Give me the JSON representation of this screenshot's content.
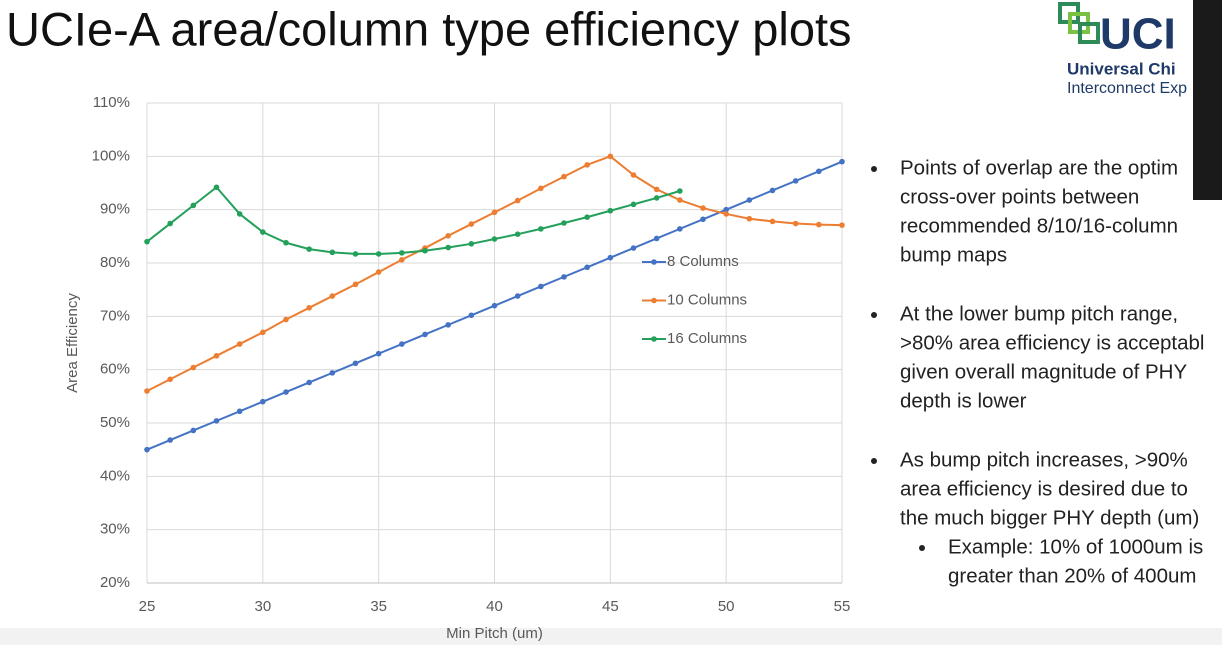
{
  "slide": {
    "title": "UCIe-A area/column type efficiency plots",
    "logo": {
      "mark": "UCI",
      "line1": "Universal Chi",
      "line2": "Interconnect Exp"
    },
    "bullets": [
      {
        "lines": [
          "Points of overlap are the optim",
          "cross-over points between",
          "recommended 8/10/16-column",
          "bump maps"
        ]
      },
      {
        "lines": [
          "At the lower bump pitch range,",
          ">80% area efficiency is acceptabl",
          "given overall magnitude of PHY",
          "depth is lower"
        ]
      },
      {
        "lines": [
          "As bump pitch increases, >90%",
          "area efficiency is desired due to",
          "the much bigger PHY depth (um)"
        ],
        "sub": [
          {
            "lines": [
              "Example: 10% of 1000um is",
              "greater than 20% of 400um"
            ]
          }
        ]
      }
    ]
  },
  "chart_data": {
    "type": "line",
    "x_label": "Min Pitch (um)",
    "y_label": "Area Efficiency",
    "x": [
      25,
      26,
      27,
      28,
      29,
      30,
      31,
      32,
      33,
      34,
      35,
      36,
      37,
      38,
      39,
      40,
      41,
      42,
      43,
      44,
      45,
      46,
      47,
      48,
      49,
      50,
      51,
      52,
      53,
      54,
      55
    ],
    "series": [
      {
        "name": "8 Columns",
        "color": "#4472c4",
        "values": [
          45,
          46.8,
          48.6,
          50.4,
          52.2,
          54,
          55.8,
          57.6,
          59.4,
          61.2,
          63,
          64.8,
          66.6,
          68.4,
          70.2,
          72,
          73.8,
          75.6,
          77.4,
          79.2,
          81,
          82.8,
          84.6,
          86.4,
          88.2,
          90,
          91.8,
          93.6,
          95.4,
          97.2,
          99
        ]
      },
      {
        "name": "10 Columns",
        "color": "#ed7d31",
        "values": [
          56,
          58.2,
          60.4,
          62.6,
          64.8,
          67,
          69.4,
          71.6,
          73.8,
          76,
          78.3,
          80.6,
          82.8,
          85.1,
          87.3,
          89.5,
          91.7,
          94,
          96.2,
          98.4,
          100,
          96.5,
          93.8,
          91.8,
          90.3,
          89.2,
          88.3,
          87.8,
          87.4,
          87.2,
          87.1
        ]
      },
      {
        "name": "16 Columns",
        "color": "#23a05a",
        "values": [
          84,
          87.4,
          90.8,
          94.2,
          89.2,
          85.8,
          83.8,
          82.6,
          82,
          81.7,
          81.7,
          81.9,
          82.3,
          82.9,
          83.6,
          84.5,
          85.4,
          86.4,
          87.5,
          88.6,
          89.8,
          91,
          92.2,
          93.5,
          null,
          null,
          null,
          null,
          null,
          null,
          null
        ]
      }
    ],
    "xlim": [
      25,
      55
    ],
    "xticks": [
      25,
      30,
      35,
      40,
      45,
      50,
      55
    ],
    "ylim": [
      20,
      110
    ],
    "yticks": [
      {
        "value": 20,
        "label": "20%"
      },
      {
        "value": 30,
        "label": "30%"
      },
      {
        "value": 40,
        "label": "40%"
      },
      {
        "value": 50,
        "label": "50%"
      },
      {
        "value": 60,
        "label": "60%"
      },
      {
        "value": 70,
        "label": "70%"
      },
      {
        "value": 80,
        "label": "80%"
      },
      {
        "value": 90,
        "label": "90%"
      },
      {
        "value": 100,
        "label": "100%"
      },
      {
        "value": 110,
        "label": "110%"
      }
    ],
    "grid": true,
    "legend": "center right"
  }
}
